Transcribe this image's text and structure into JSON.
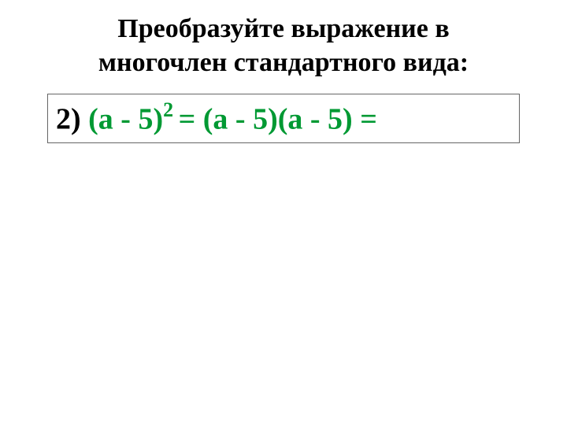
{
  "title_line1": "Преобразуйте выражение в",
  "title_line2": "многочлен стандартного вида:",
  "math": {
    "prefix": "2) ",
    "part1": "(a - 5)",
    "exponent": "2 ",
    "part2": "= (a - 5)(a - 5) ="
  },
  "colors": {
    "text_black": "#000000",
    "text_green": "#009933",
    "border": "#666666",
    "background": "#ffffff"
  },
  "fonts": {
    "title_size": 34,
    "math_size": 38,
    "sup_size": 26,
    "weight": "bold",
    "family": "Times New Roman"
  }
}
